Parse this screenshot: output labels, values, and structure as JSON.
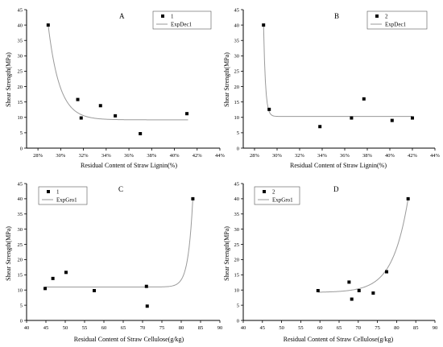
{
  "chart_data": [
    {
      "type": "scatter",
      "panel": "A",
      "xlabel": "Residual Content of Straw Lignin(%)",
      "ylabel": "Shear Strength(MPa)",
      "x_percent": true,
      "xlim": [
        27,
        44
      ],
      "ylim": [
        0,
        45
      ],
      "xticks": [
        28,
        30,
        32,
        34,
        36,
        38,
        40,
        42,
        44
      ],
      "yticks": [
        0,
        5,
        10,
        15,
        20,
        25,
        30,
        35,
        40,
        45
      ],
      "series": [
        {
          "name": "1",
          "x": [
            28.9,
            31.5,
            31.8,
            33.5,
            34.8,
            37.0,
            41.1
          ],
          "y": [
            40.0,
            15.8,
            9.8,
            13.8,
            10.5,
            4.7,
            11.2
          ]
        }
      ],
      "fit": {
        "name": "ExpDec1",
        "model": "expdec",
        "y0": 9.2,
        "A": 30.8,
        "x0": 28.9,
        "t": 1.0,
        "xrange": [
          28.9,
          41.2
        ]
      },
      "legend_position": "top-right"
    },
    {
      "type": "scatter",
      "panel": "B",
      "xlabel": "Residual Content of Straw Lignin(%)",
      "ylabel": "Shear Strength(MPa)",
      "x_percent": true,
      "xlim": [
        27,
        44
      ],
      "ylim": [
        0,
        45
      ],
      "xticks": [
        28,
        30,
        32,
        34,
        36,
        38,
        40,
        42,
        44
      ],
      "yticks": [
        0,
        5,
        10,
        15,
        20,
        25,
        30,
        35,
        40,
        45
      ],
      "series": [
        {
          "name": "2",
          "x": [
            28.8,
            29.3,
            33.8,
            36.6,
            37.7,
            40.2,
            42.0
          ],
          "y": [
            40.0,
            12.6,
            7.0,
            9.8,
            16.0,
            9.0,
            9.8
          ]
        }
      ],
      "fit": {
        "name": "ExpDec1",
        "model": "expdec",
        "y0": 10.3,
        "A": 29.7,
        "x0": 28.8,
        "t": 0.17,
        "xrange": [
          28.8,
          42.0
        ]
      },
      "legend_position": "top-right"
    },
    {
      "type": "scatter",
      "panel": "C",
      "xlabel": "Residual Content of Straw Cellulose(g/kg)",
      "ylabel": "Shear Strength(MPa)",
      "x_percent": false,
      "xlim": [
        40,
        90
      ],
      "ylim": [
        0,
        45
      ],
      "xticks": [
        40,
        45,
        50,
        55,
        60,
        65,
        70,
        75,
        80,
        85,
        90
      ],
      "yticks": [
        0,
        5,
        10,
        15,
        20,
        25,
        30,
        35,
        40,
        45
      ],
      "series": [
        {
          "name": "1",
          "x": [
            44.8,
            46.8,
            50.2,
            57.5,
            71.0,
            71.2,
            83.0
          ],
          "y": [
            10.5,
            13.8,
            15.8,
            9.8,
            11.2,
            4.7,
            40.0
          ]
        }
      ],
      "fit": {
        "name": "ExpGro1",
        "model": "expgro",
        "y0": 11.0,
        "A": 29.0,
        "x0": 83.0,
        "t": 1.2,
        "xrange": [
          44.8,
          83.0
        ]
      },
      "legend_position": "top-left"
    },
    {
      "type": "scatter",
      "panel": "D",
      "xlabel": "Residual Content of Straw Cellulose(g/kg)",
      "ylabel": "Shear Strength(MPa)",
      "x_percent": false,
      "xlim": [
        40,
        90
      ],
      "ylim": [
        0,
        45
      ],
      "xticks": [
        40,
        45,
        50,
        55,
        60,
        65,
        70,
        75,
        80,
        85,
        90
      ],
      "yticks": [
        0,
        5,
        10,
        15,
        20,
        25,
        30,
        35,
        40,
        45
      ],
      "series": [
        {
          "name": "2",
          "x": [
            59.5,
            67.6,
            68.3,
            70.2,
            73.9,
            77.4,
            83.0
          ],
          "y": [
            9.8,
            12.6,
            7.0,
            9.8,
            9.0,
            16.0,
            40.0
          ]
        }
      ],
      "fit": {
        "name": "ExpGro1",
        "model": "expgro",
        "y0": 9.2,
        "A": 30.8,
        "x0": 83.0,
        "t": 4.0,
        "xrange": [
          59.5,
          83.0
        ]
      },
      "legend_position": "top-left"
    }
  ]
}
